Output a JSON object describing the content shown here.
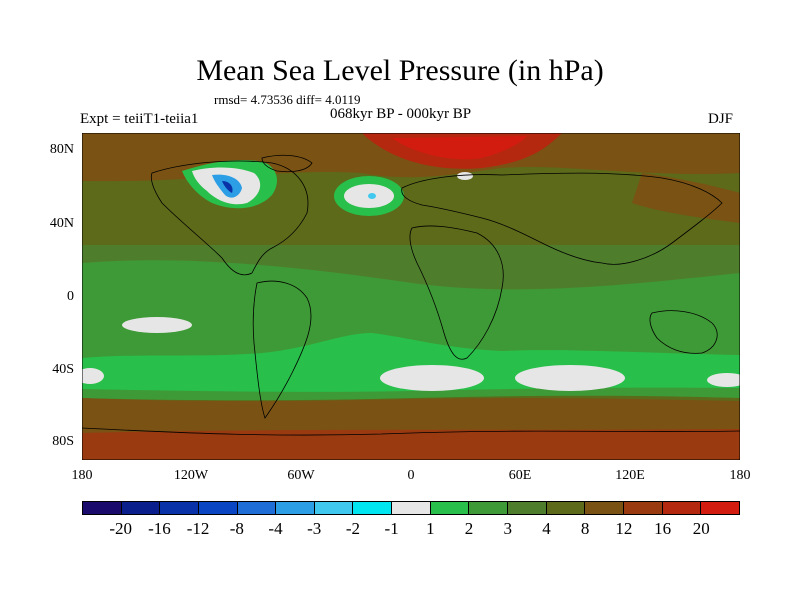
{
  "title": "Mean Sea Level Pressure (in hPa)",
  "stats": "rmsd= 4.73536 diff= 4.0119",
  "experiment": "Expt = teiiT1-teiia1",
  "period": "068kyr BP - 000kyr BP",
  "season": "DJF",
  "lat_ticks": [
    "80N",
    "40N",
    "0",
    "40S",
    "80S"
  ],
  "lon_ticks": [
    "180",
    "120W",
    "60W",
    "0",
    "60E",
    "120E",
    "180"
  ],
  "colorbar": {
    "labels": [
      "-20",
      "-16",
      "-12",
      "-8",
      "-4",
      "-3",
      "-2",
      "-1",
      "1",
      "2",
      "3",
      "4",
      "8",
      "12",
      "16",
      "20"
    ],
    "colors": [
      "#1a0a6b",
      "#0a1e8c",
      "#0a32a8",
      "#0a46c4",
      "#1f6ed8",
      "#2b9ee6",
      "#40c8ee",
      "#00e6f0",
      "#e6e6e6",
      "#28c04a",
      "#3e9a36",
      "#4e7e2c",
      "#5c6a1a",
      "#7a5214",
      "#9a3a10",
      "#b42810",
      "#d21c10"
    ]
  }
}
